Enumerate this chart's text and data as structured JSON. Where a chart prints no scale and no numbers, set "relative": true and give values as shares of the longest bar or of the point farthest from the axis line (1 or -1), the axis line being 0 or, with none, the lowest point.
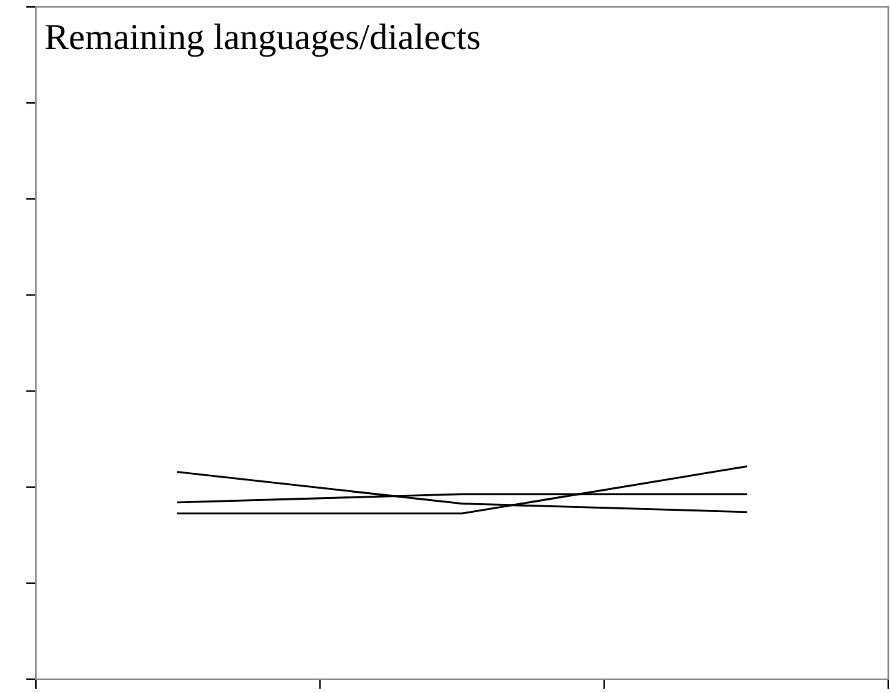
{
  "chart_data": {
    "type": "line",
    "title": "Remaining languages/dialects",
    "categories": [
      null,
      null,
      null
    ],
    "relative": true,
    "series": [
      {
        "color": "#000000",
        "values": [
          0.974,
          0.825,
          0.786
        ]
      },
      {
        "color": "#000000",
        "values": [
          0.831,
          0.87,
          0.87
        ]
      },
      {
        "color": "#000000",
        "values": [
          0.779,
          0.779,
          1.0
        ]
      }
    ],
    "grid": false,
    "legend": false
  }
}
